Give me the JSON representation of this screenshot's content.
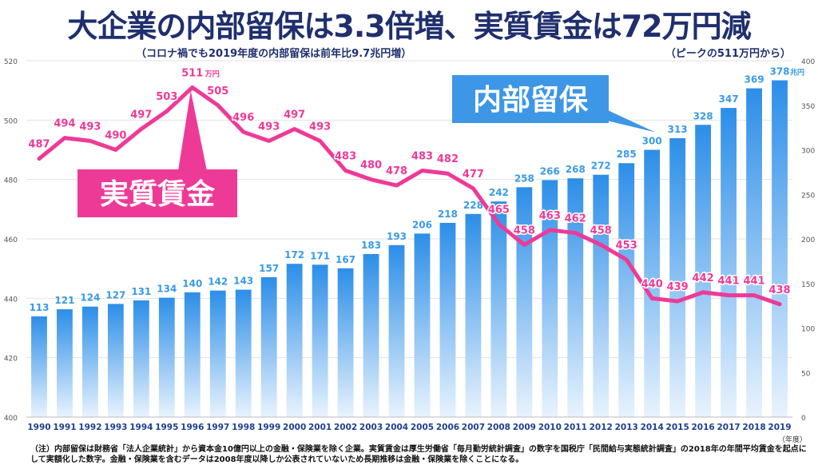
{
  "title": "大企業の内部留保は3.3倍増、実質賃金は72万円減",
  "subtitle": "（コロナ禍でも2019年度の内部留保は前年比9.7兆円増）",
  "peak_note": "（ピークの511万円から）",
  "footnote": "（注）内部留保は財務省「法人企業統計」から資本金10億円以上の金融・保険業を除く企業。実質賃金は厚生労働省「毎月勤労統計調査」の数字を国税庁「民間給与実態統計調査」の2018年の年間平均賃金を起点にして実額化した数字。金融・保険業を含むデータは2008年度以降しか公表されていないため長期推移は金融・保険業を除くことになる。",
  "colors": {
    "title": "#1f2f6e",
    "bar_top": "#2c8ee8",
    "bar_bottom": "#e8f3fd",
    "bar_label": "#3a9ae8",
    "line": "#ee3a97",
    "callout_blue": "#3d97e6",
    "callout_pink": "#ee3a97"
  },
  "chart_data": {
    "type": "bar+line",
    "categories": [
      "1990",
      "1991",
      "1992",
      "1993",
      "1994",
      "1995",
      "1996",
      "1997",
      "1998",
      "1999",
      "2000",
      "2001",
      "2002",
      "2003",
      "2004",
      "2005",
      "2006",
      "2007",
      "2008",
      "2009",
      "2010",
      "2011",
      "2012",
      "2013",
      "2014",
      "2015",
      "2016",
      "2017",
      "2018",
      "2019"
    ],
    "x_unit_label": "（年度）",
    "series": [
      {
        "name": "内部留保",
        "type": "bar",
        "axis": "right",
        "unit": "兆円",
        "values": [
          113,
          121,
          124,
          127,
          131,
          134,
          140,
          142,
          143,
          157,
          172,
          171,
          167,
          183,
          193,
          206,
          218,
          228,
          242,
          258,
          266,
          268,
          272,
          285,
          300,
          313,
          328,
          347,
          369,
          378
        ]
      },
      {
        "name": "実質賃金",
        "type": "line",
        "axis": "left",
        "unit": "万円",
        "values": [
          487,
          494,
          493,
          490,
          497,
          503,
          511,
          505,
          496,
          493,
          497,
          493,
          483,
          480,
          478,
          483,
          482,
          477,
          465,
          458,
          463,
          462,
          458,
          453,
          440,
          439,
          442,
          441,
          441,
          438
        ]
      }
    ],
    "left_axis": {
      "min": 400,
      "max": 520,
      "ticks": [
        400,
        420,
        440,
        460,
        480,
        500,
        520
      ]
    },
    "right_axis": {
      "min": 0,
      "max": 400,
      "ticks": [
        0,
        50,
        100,
        150,
        200,
        250,
        300,
        350,
        400
      ]
    },
    "annotations": {
      "bar_callout": "内部留保",
      "line_callout": "実質賃金",
      "peak_unit": "万円",
      "last_bar_unit": "兆円"
    }
  }
}
